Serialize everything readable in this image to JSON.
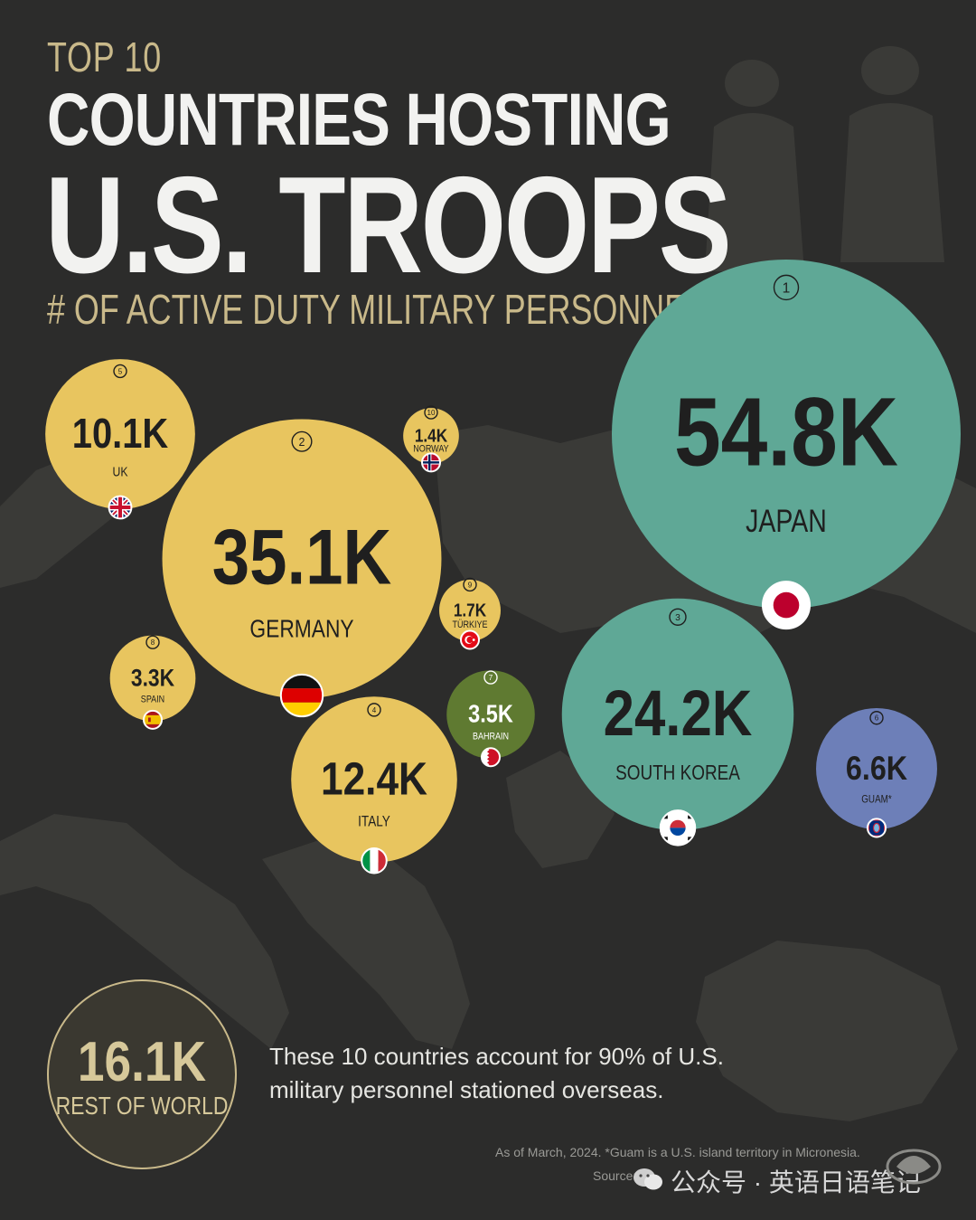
{
  "title": {
    "top": "TOP 10",
    "line1": "COUNTRIES HOSTING",
    "line2": "U.S. TROOPS",
    "subtitle": "# OF ACTIVE DUTY MILITARY PERSONNEL"
  },
  "note": "These 10 countries account for 90% of U.S. military personnel stationed overseas.",
  "footnote": "As of March, 2024. *Guam is a U.S. island territory in Micronesia.",
  "source": "Source:",
  "watermark": "公众号 · 英语日语笔记",
  "colors": {
    "background": "#2c2c2b",
    "europe": "#e8c55f",
    "asia": "#5fa896",
    "middle_east": "#5f7a31",
    "guam": "#6d7fb8",
    "rest_of_world": "#3a3830",
    "accent_text": "#c9b98a"
  },
  "chart_data": {
    "type": "bubble",
    "unit": "active duty military personnel",
    "categories": [
      "Japan",
      "Germany",
      "South Korea",
      "Italy",
      "UK",
      "Guam",
      "Bahrain",
      "Spain",
      "Türkiye",
      "Norway"
    ],
    "values": [
      54800,
      35100,
      24200,
      12400,
      10100,
      6600,
      3500,
      3300,
      1700,
      1400
    ],
    "bubbles": [
      {
        "rank": "1",
        "value": 54800,
        "value_label": "54.8K",
        "country": "JAPAN",
        "region": "asia",
        "flag": "japan-flag"
      },
      {
        "rank": "2",
        "value": 35100,
        "value_label": "35.1K",
        "country": "GERMANY",
        "region": "europe",
        "flag": "germany-flag"
      },
      {
        "rank": "3",
        "value": 24200,
        "value_label": "24.2K",
        "country": "SOUTH KOREA",
        "region": "asia",
        "flag": "south-korea-flag"
      },
      {
        "rank": "4",
        "value": 12400,
        "value_label": "12.4K",
        "country": "ITALY",
        "region": "europe",
        "flag": "italy-flag"
      },
      {
        "rank": "5",
        "value": 10100,
        "value_label": "10.1K",
        "country": "UK",
        "region": "europe",
        "flag": "uk-flag"
      },
      {
        "rank": "6",
        "value": 6600,
        "value_label": "6.6K",
        "country": "GUAM*",
        "region": "guam",
        "flag": "guam-flag"
      },
      {
        "rank": "7",
        "value": 3500,
        "value_label": "3.5K",
        "country": "BAHRAIN",
        "region": "middle_east",
        "flag": "bahrain-flag"
      },
      {
        "rank": "8",
        "value": 3300,
        "value_label": "3.3K",
        "country": "SPAIN",
        "region": "europe",
        "flag": "spain-flag"
      },
      {
        "rank": "9",
        "value": 1700,
        "value_label": "1.7K",
        "country": "TÜRKIYE",
        "region": "europe",
        "flag": "turkey-flag"
      },
      {
        "rank": "10",
        "value": 1400,
        "value_label": "1.4K",
        "country": "NORWAY",
        "region": "europe",
        "flag": "norway-flag"
      }
    ],
    "rest_of_world": {
      "value": 16100,
      "value_label": "16.1K",
      "label": "REST OF WORLD"
    }
  }
}
